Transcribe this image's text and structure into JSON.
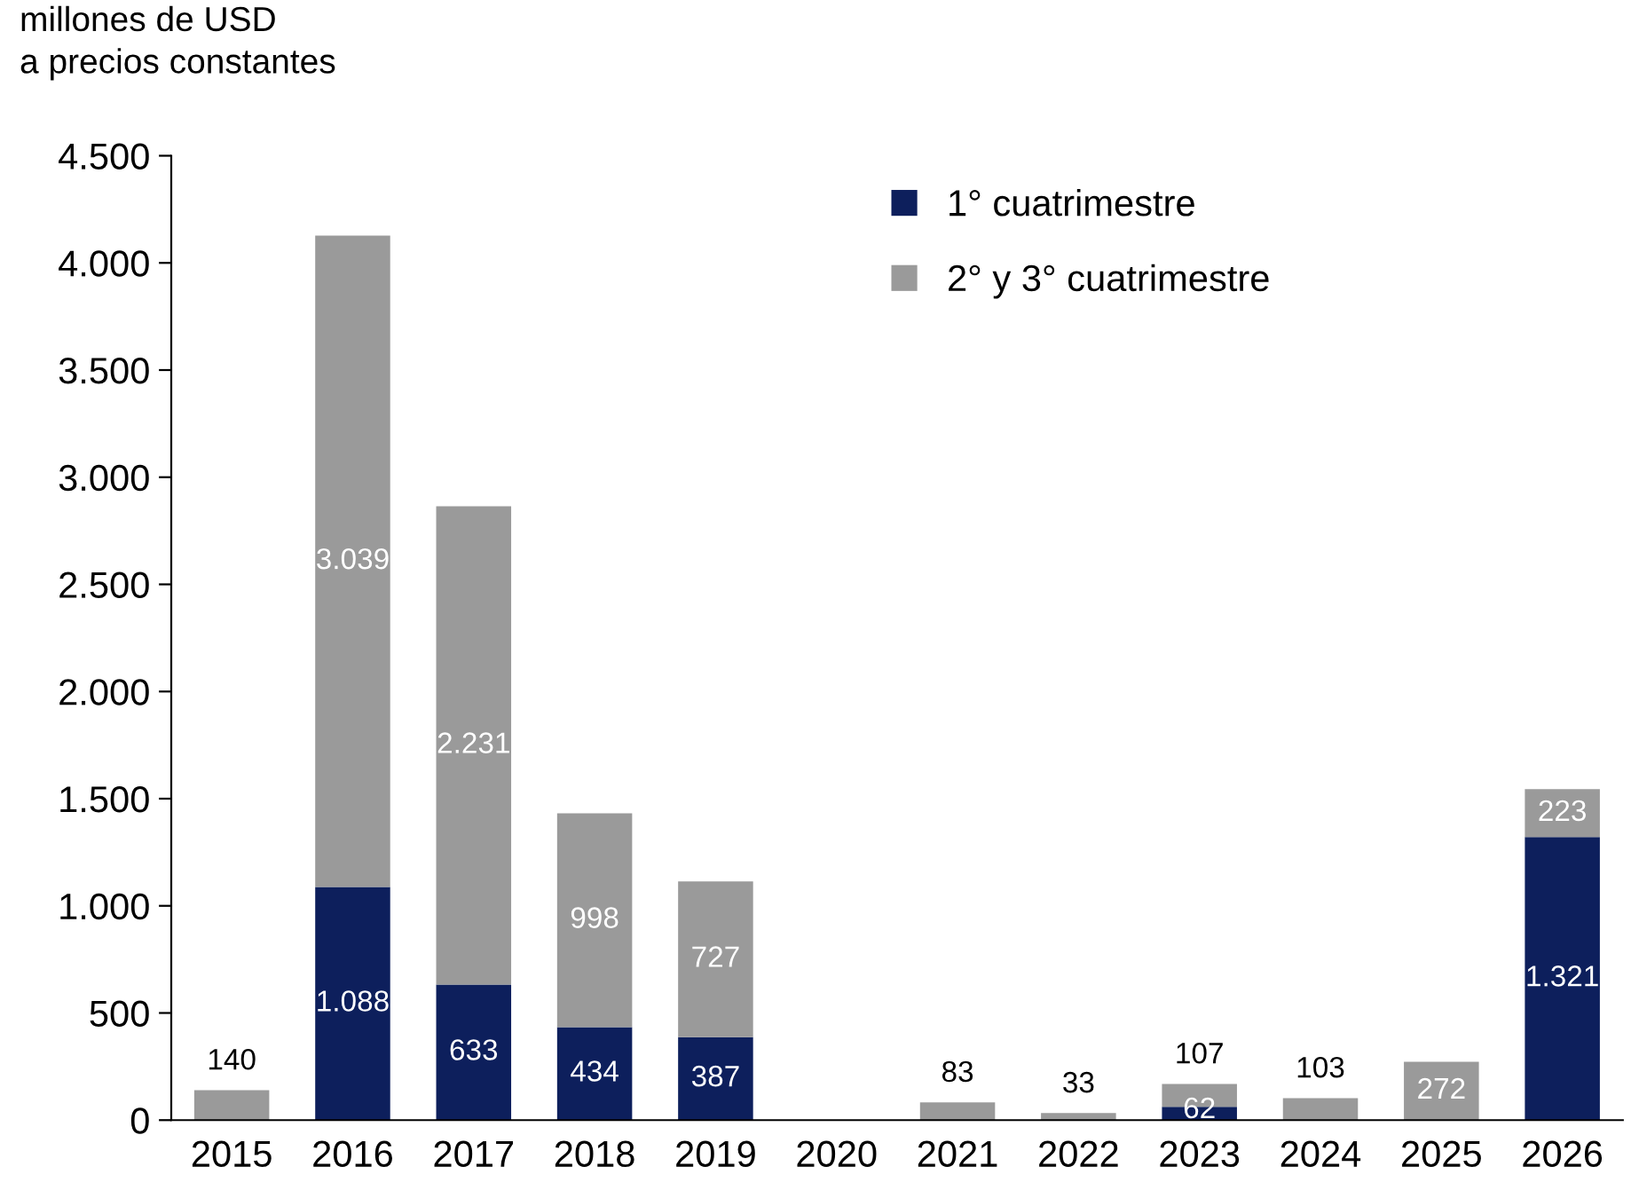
{
  "chart_data": {
    "type": "bar",
    "stacked": true,
    "ylabel": "millones de USD\na precios constantes",
    "categories": [
      "2015",
      "2016",
      "2017",
      "2018",
      "2019",
      "2020",
      "2021",
      "2022",
      "2023",
      "2024",
      "2025",
      "2026"
    ],
    "series": [
      {
        "name": "1° cuatrimestre",
        "color": "#0d1f5c",
        "values": [
          null,
          1088,
          633,
          434,
          387,
          null,
          null,
          null,
          62,
          null,
          null,
          1321
        ],
        "value_labels": [
          null,
          "1.088",
          "633",
          "434",
          "387",
          null,
          null,
          null,
          "62",
          null,
          null,
          "1.321"
        ]
      },
      {
        "name": "2° y 3° cuatrimestre",
        "color": "#9a9a9a",
        "values": [
          140,
          3039,
          2231,
          998,
          727,
          null,
          83,
          33,
          107,
          103,
          272,
          223
        ],
        "value_labels": [
          "140",
          "3.039",
          "2.231",
          "998",
          "727",
          null,
          "83",
          "33",
          "107",
          "103",
          "272",
          "223"
        ]
      }
    ],
    "ylim": [
      0,
      4500
    ],
    "yticks": [
      0,
      {
        "value": 500,
        "label": "500"
      },
      {
        "value": 1000,
        "label": "1.000"
      },
      {
        "value": 1500,
        "label": "1.500"
      },
      {
        "value": 2000,
        "label": "2.000"
      },
      {
        "value": 2500,
        "label": "2.500"
      },
      {
        "value": 3000,
        "label": "3.000"
      },
      {
        "value": 3500,
        "label": "3.500"
      },
      {
        "value": 4000,
        "label": "4.000"
      },
      {
        "value": 4500,
        "label": "4.500"
      }
    ],
    "grid": false,
    "legend": "top right"
  }
}
